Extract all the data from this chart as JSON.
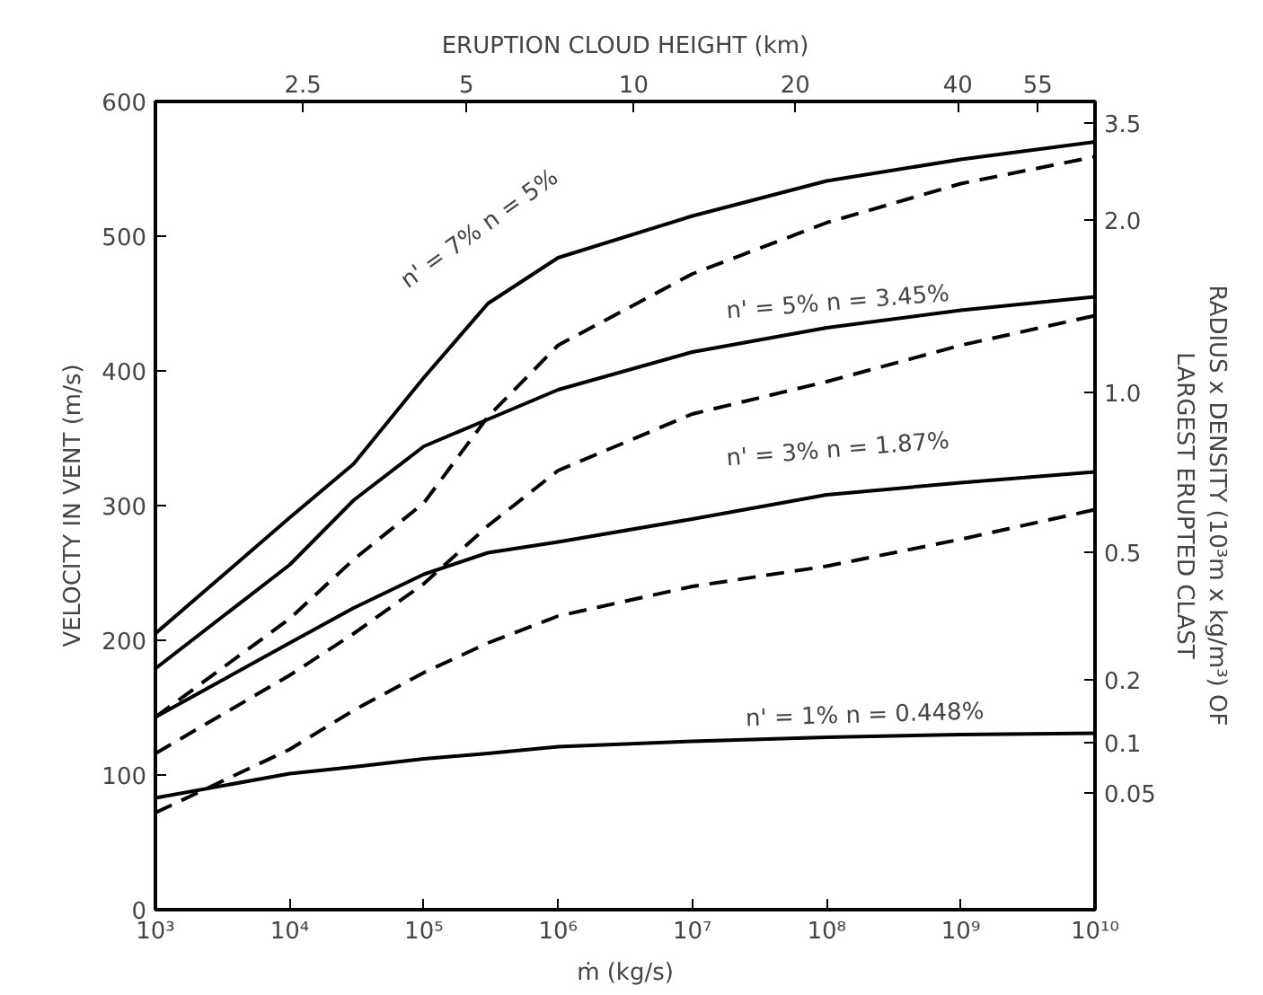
{
  "chart_data": {
    "type": "line",
    "xlabel": "ṁ (kg/s)",
    "ylabel": "VELOCITY IN VENT (m/s)",
    "x2label": "ERUPTION CLOUD HEIGHT (km)",
    "y2label": "RADIUS x DENSITY (10³m x kg/m³) OF\nLARGEST ERUPTED CLAST",
    "log": "x",
    "x": [
      1000,
      10000,
      30000,
      100000,
      300000,
      1000000,
      10000000,
      100000000,
      1000000000,
      10000000000
    ],
    "series": [
      {
        "color": "#000000",
        "line_style": "solid",
        "values": [
          205,
          291,
          331,
          395,
          450,
          484,
          515,
          541,
          557,
          570
        ]
      },
      {
        "color": "#000000",
        "line_style": "solid",
        "values": [
          179,
          256,
          304,
          344,
          364,
          386,
          414,
          432,
          445,
          455
        ]
      },
      {
        "color": "#000000",
        "line_style": "solid",
        "values": [
          143,
          198,
          224,
          249,
          265,
          273,
          290,
          308,
          317,
          325
        ]
      },
      {
        "color": "#000000",
        "line_style": "solid",
        "values": [
          83,
          101,
          106,
          112,
          116,
          121,
          125,
          128,
          130,
          131
        ]
      },
      {
        "color": "#000000",
        "line_style": "dashed",
        "values": [
          143,
          216,
          260,
          302,
          366,
          419,
          472,
          510,
          539,
          559
        ]
      },
      {
        "color": "#000000",
        "line_style": "dashed",
        "values": [
          116,
          174,
          205,
          242,
          285,
          326,
          368,
          392,
          419,
          441
        ]
      },
      {
        "color": "#000000",
        "line_style": "dashed",
        "values": [
          72,
          119,
          148,
          176,
          198,
          218,
          240,
          255,
          275,
          297
        ]
      }
    ],
    "xlim": [
      1000,
      10000000000
    ],
    "xticks": [
      {
        "value": 1000,
        "label": "10³"
      },
      {
        "value": 10000,
        "label": "10⁴"
      },
      {
        "value": 100000,
        "label": "10⁵"
      },
      {
        "value": 1000000,
        "label": "10⁶"
      },
      {
        "value": 10000000,
        "label": "10⁷"
      },
      {
        "value": 100000000,
        "label": "10⁸"
      },
      {
        "value": 1000000000,
        "label": "10⁹"
      },
      {
        "value": 10000000000,
        "label": "10¹⁰"
      }
    ],
    "ylim": [
      0,
      600
    ],
    "yticks": [
      0,
      100,
      200,
      300,
      400,
      500,
      600
    ],
    "annotations": [
      "n' = 7%   n = 5%",
      "n' = 5%   n = 3.45%",
      "n' = 3%   n = 1.87%",
      "n' = 1%   n = 0.448%",
      "3.5",
      "2.0",
      "1.0",
      "0.5",
      "0.2",
      "0.1",
      "0.05",
      "2.5",
      "5",
      "10",
      "20",
      "40",
      "55"
    ],
    "grid": false
  }
}
